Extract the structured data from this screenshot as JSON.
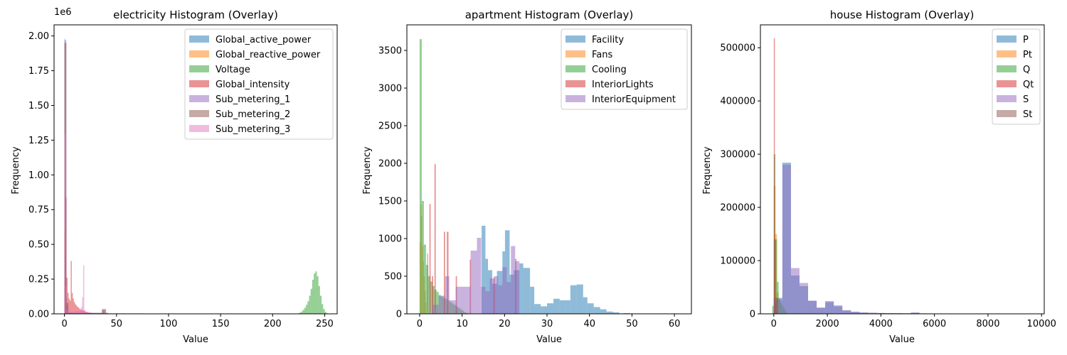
{
  "palette": [
    "#1f77b4",
    "#ff7f0e",
    "#2ca02c",
    "#d62728",
    "#9467bd",
    "#8c564b",
    "#e377c2"
  ],
  "bar_alpha": 0.5,
  "chart_data": [
    {
      "type": "histogram",
      "title": "electricity Histogram (Overlay)",
      "xlabel": "Value",
      "ylabel": "Frequency",
      "y_offset_label": "1e6",
      "xlim": [
        -10,
        262
      ],
      "ylim": [
        0,
        2080000
      ],
      "xticks": [
        0,
        50,
        100,
        150,
        200,
        250
      ],
      "yticks": [
        0,
        250000,
        500000,
        750000,
        1000000,
        1250000,
        1500000,
        1750000,
        2000000
      ],
      "ytick_labels": [
        "0.00",
        "0.25",
        "0.50",
        "0.75",
        "1.00",
        "1.25",
        "1.50",
        "1.75",
        "2.00"
      ],
      "legend_position": "upper-right",
      "series": [
        {
          "name": "Global_active_power",
          "bin_edges": [
            0,
            0.55,
            1.1,
            1.65,
            2.2,
            2.75,
            3.3,
            3.85,
            4.4,
            4.95,
            5.5
          ],
          "counts": [
            1980000,
            410000,
            230000,
            120000,
            70000,
            40000,
            20000,
            10000,
            5000,
            3000
          ]
        },
        {
          "name": "Global_reactive_power",
          "bin_edges": [
            0,
            0.5,
            1.0,
            1.5
          ],
          "counts": [
            1950000,
            60000,
            5000
          ]
        },
        {
          "name": "Voltage",
          "bin_edges": [
            223,
            224.5,
            226,
            227.5,
            229,
            230.5,
            232,
            233.5,
            235,
            236.5,
            238,
            239.5,
            241,
            242.5,
            244,
            245.5,
            247,
            248.5,
            250,
            251.5,
            253,
            254.5
          ],
          "counts": [
            2000,
            5000,
            10000,
            18000,
            30000,
            45000,
            65000,
            90000,
            130000,
            180000,
            245000,
            290000,
            305000,
            270000,
            200000,
            130000,
            70000,
            35000,
            15000,
            6000,
            2000
          ]
        },
        {
          "name": "Global_intensity",
          "bin_edges": [
            0,
            1,
            2,
            3,
            4,
            5,
            6,
            7,
            8,
            9,
            10,
            11,
            12,
            13,
            14,
            15,
            16,
            17,
            18,
            19,
            20,
            22,
            24,
            26,
            28,
            30,
            34,
            38,
            42,
            46,
            48
          ],
          "counts": [
            600000,
            840000,
            260000,
            150000,
            110000,
            95000,
            380000,
            150000,
            110000,
            85000,
            70000,
            60000,
            52000,
            45000,
            38000,
            33000,
            28000,
            25000,
            22000,
            20000,
            15000,
            10000,
            7000,
            5000,
            3000,
            2500,
            3000,
            1500,
            800,
            300
          ]
        },
        {
          "name": "Sub_metering_1",
          "bin_edges": [
            0,
            1.8,
            36,
            39,
            42,
            80
          ],
          "counts": [
            1970000,
            8000,
            25000,
            8000,
            2000
          ]
        },
        {
          "name": "Sub_metering_2",
          "bin_edges": [
            0,
            1.8,
            3.6,
            36,
            40,
            76
          ],
          "counts": [
            1950000,
            80000,
            5000,
            35000,
            3000
          ]
        },
        {
          "name": "Sub_metering_3",
          "bin_edges": [
            0,
            1,
            2,
            5,
            10,
            15,
            16,
            17,
            18,
            19,
            20,
            25,
            31
          ],
          "counts": [
            1300000,
            200000,
            30000,
            15000,
            20000,
            25000,
            50000,
            120000,
            350000,
            30000,
            10000,
            3000
          ]
        }
      ]
    },
    {
      "type": "histogram",
      "title": "apartment Histogram (Overlay)",
      "xlabel": "Value",
      "ylabel": "Frequency",
      "xlim": [
        -3,
        64
      ],
      "ylim": [
        0,
        3840
      ],
      "xticks": [
        0,
        10,
        20,
        30,
        40,
        50,
        60
      ],
      "yticks": [
        0,
        500,
        1000,
        1500,
        2000,
        2500,
        3000,
        3500
      ],
      "ytick_labels": [
        "0",
        "500",
        "1000",
        "1500",
        "2000",
        "2500",
        "3000",
        "3500"
      ],
      "legend_position": "upper-right",
      "series": [
        {
          "name": "Facility",
          "bin_edges": [
            14.6,
            15.5,
            16.1,
            17.1,
            18.2,
            19.5,
            20.1,
            21.2,
            22.2,
            23.5,
            24.4,
            26,
            27,
            28.5,
            30,
            31.5,
            33,
            34.5,
            35.5,
            37,
            38.5,
            39.5,
            41,
            42.5,
            44,
            45.5,
            47,
            48,
            49.5,
            51,
            52.5,
            54.5,
            55.5,
            61
          ],
          "counts": [
            1170,
            730,
            580,
            400,
            570,
            830,
            1110,
            520,
            580,
            670,
            610,
            360,
            130,
            100,
            140,
            200,
            180,
            180,
            380,
            390,
            220,
            140,
            90,
            60,
            30,
            20,
            5,
            10,
            5,
            5,
            5,
            5,
            5
          ]
        },
        {
          "name": "Fans",
          "bin_edges": [
            0,
            0.2,
            0.4,
            0.6,
            0.8,
            1.0,
            1.2,
            1.4,
            1.6
          ],
          "counts": [
            950,
            1450,
            1300,
            900,
            700,
            500,
            300,
            150
          ]
        },
        {
          "name": "Cooling",
          "bin_edges": [
            0,
            0.5,
            1,
            1.5,
            2,
            2.5,
            3,
            3.5,
            4,
            4.5,
            5,
            5.5,
            6,
            6.5,
            7,
            7.5,
            8,
            8.5,
            9,
            9.5,
            10,
            10.5,
            11,
            11.5,
            12
          ],
          "counts": [
            3650,
            1500,
            920,
            650,
            500,
            430,
            370,
            320,
            290,
            250,
            230,
            210,
            200,
            180,
            160,
            140,
            120,
            100,
            80,
            60,
            40,
            20,
            10,
            5
          ]
        },
        {
          "name": "InteriorLights",
          "bin_edges": [
            1.8,
            2.0,
            2.3,
            2.6,
            2.9,
            3.2,
            3.5,
            3.8,
            5.7,
            6.0,
            6.4,
            6.8,
            8.5,
            8.8,
            11.8,
            12.1,
            17.4,
            17.7,
            22.5,
            22.8
          ],
          "counts": [
            800,
            0,
            1460,
            0,
            500,
            0,
            1990,
            0,
            1090,
            0,
            1090,
            0,
            500,
            0,
            720,
            0,
            480,
            0,
            730
          ]
        },
        {
          "name": "InteriorEquipment",
          "bin_edges": [
            3,
            4.5,
            6,
            7,
            8.5,
            9.5,
            11,
            12,
            13.5,
            14.5,
            15.5,
            16.5,
            17.5,
            18.5,
            19.5,
            20.5,
            21.5,
            22.5,
            23.5
          ],
          "counts": [
            120,
            240,
            500,
            180,
            360,
            360,
            360,
            840,
            1010,
            360,
            300,
            470,
            500,
            380,
            620,
            420,
            900,
            700
          ]
        }
      ]
    },
    {
      "type": "histogram",
      "title": "house Histogram (Overlay)",
      "xlabel": "Value",
      "ylabel": "Frequency",
      "xlim": [
        -500,
        10100
      ],
      "ylim": [
        0,
        543000
      ],
      "xticks": [
        0,
        2000,
        4000,
        6000,
        8000,
        10000
      ],
      "yticks": [
        0,
        100000,
        200000,
        300000,
        400000,
        500000
      ],
      "ytick_labels": [
        "0",
        "100000",
        "200000",
        "300000",
        "400000",
        "500000"
      ],
      "legend_position": "upper-right",
      "series": [
        {
          "name": "P",
          "bin_edges": [
            0,
            320,
            640,
            960,
            1280,
            1600,
            1920,
            2240,
            2560,
            2880,
            3200,
            3520,
            3840,
            4160,
            4480,
            4800,
            5120,
            5440,
            5760,
            6080,
            6400
          ],
          "counts": [
            30000,
            284000,
            72000,
            52000,
            24000,
            11000,
            22000,
            14000,
            6000,
            3500,
            2500,
            2000,
            1500,
            1200,
            1200,
            1000,
            2000,
            800,
            500,
            300
          ]
        },
        {
          "name": "Pt",
          "bin_edges": [
            0,
            60,
            120,
            180
          ],
          "counts": [
            240000,
            150000,
            40000
          ]
        },
        {
          "name": "Q",
          "bin_edges": [
            -60,
            0,
            60,
            120,
            180,
            240,
            300,
            360,
            420,
            480
          ],
          "counts": [
            15000,
            300000,
            140000,
            60000,
            28000,
            20000,
            15000,
            10000,
            5000
          ]
        },
        {
          "name": "Qt",
          "bin_edges": [
            0,
            40,
            80,
            120
          ],
          "counts": [
            518000,
            20000,
            5000
          ]
        },
        {
          "name": "S",
          "bin_edges": [
            0,
            320,
            640,
            960,
            1280,
            1600,
            1920,
            2240,
            2560,
            2880,
            3200,
            3520,
            3840,
            4160,
            4480,
            4800,
            5120,
            5440,
            5760,
            6080,
            6400,
            9700
          ],
          "counts": [
            26000,
            280000,
            86000,
            58000,
            25000,
            12000,
            24000,
            16000,
            7000,
            4000,
            2500,
            2000,
            1500,
            1200,
            1200,
            1000,
            2500,
            800,
            500,
            300,
            100
          ]
        },
        {
          "name": "St",
          "bin_edges": [
            0,
            80,
            160
          ],
          "counts": [
            140000,
            30000
          ]
        }
      ]
    }
  ]
}
